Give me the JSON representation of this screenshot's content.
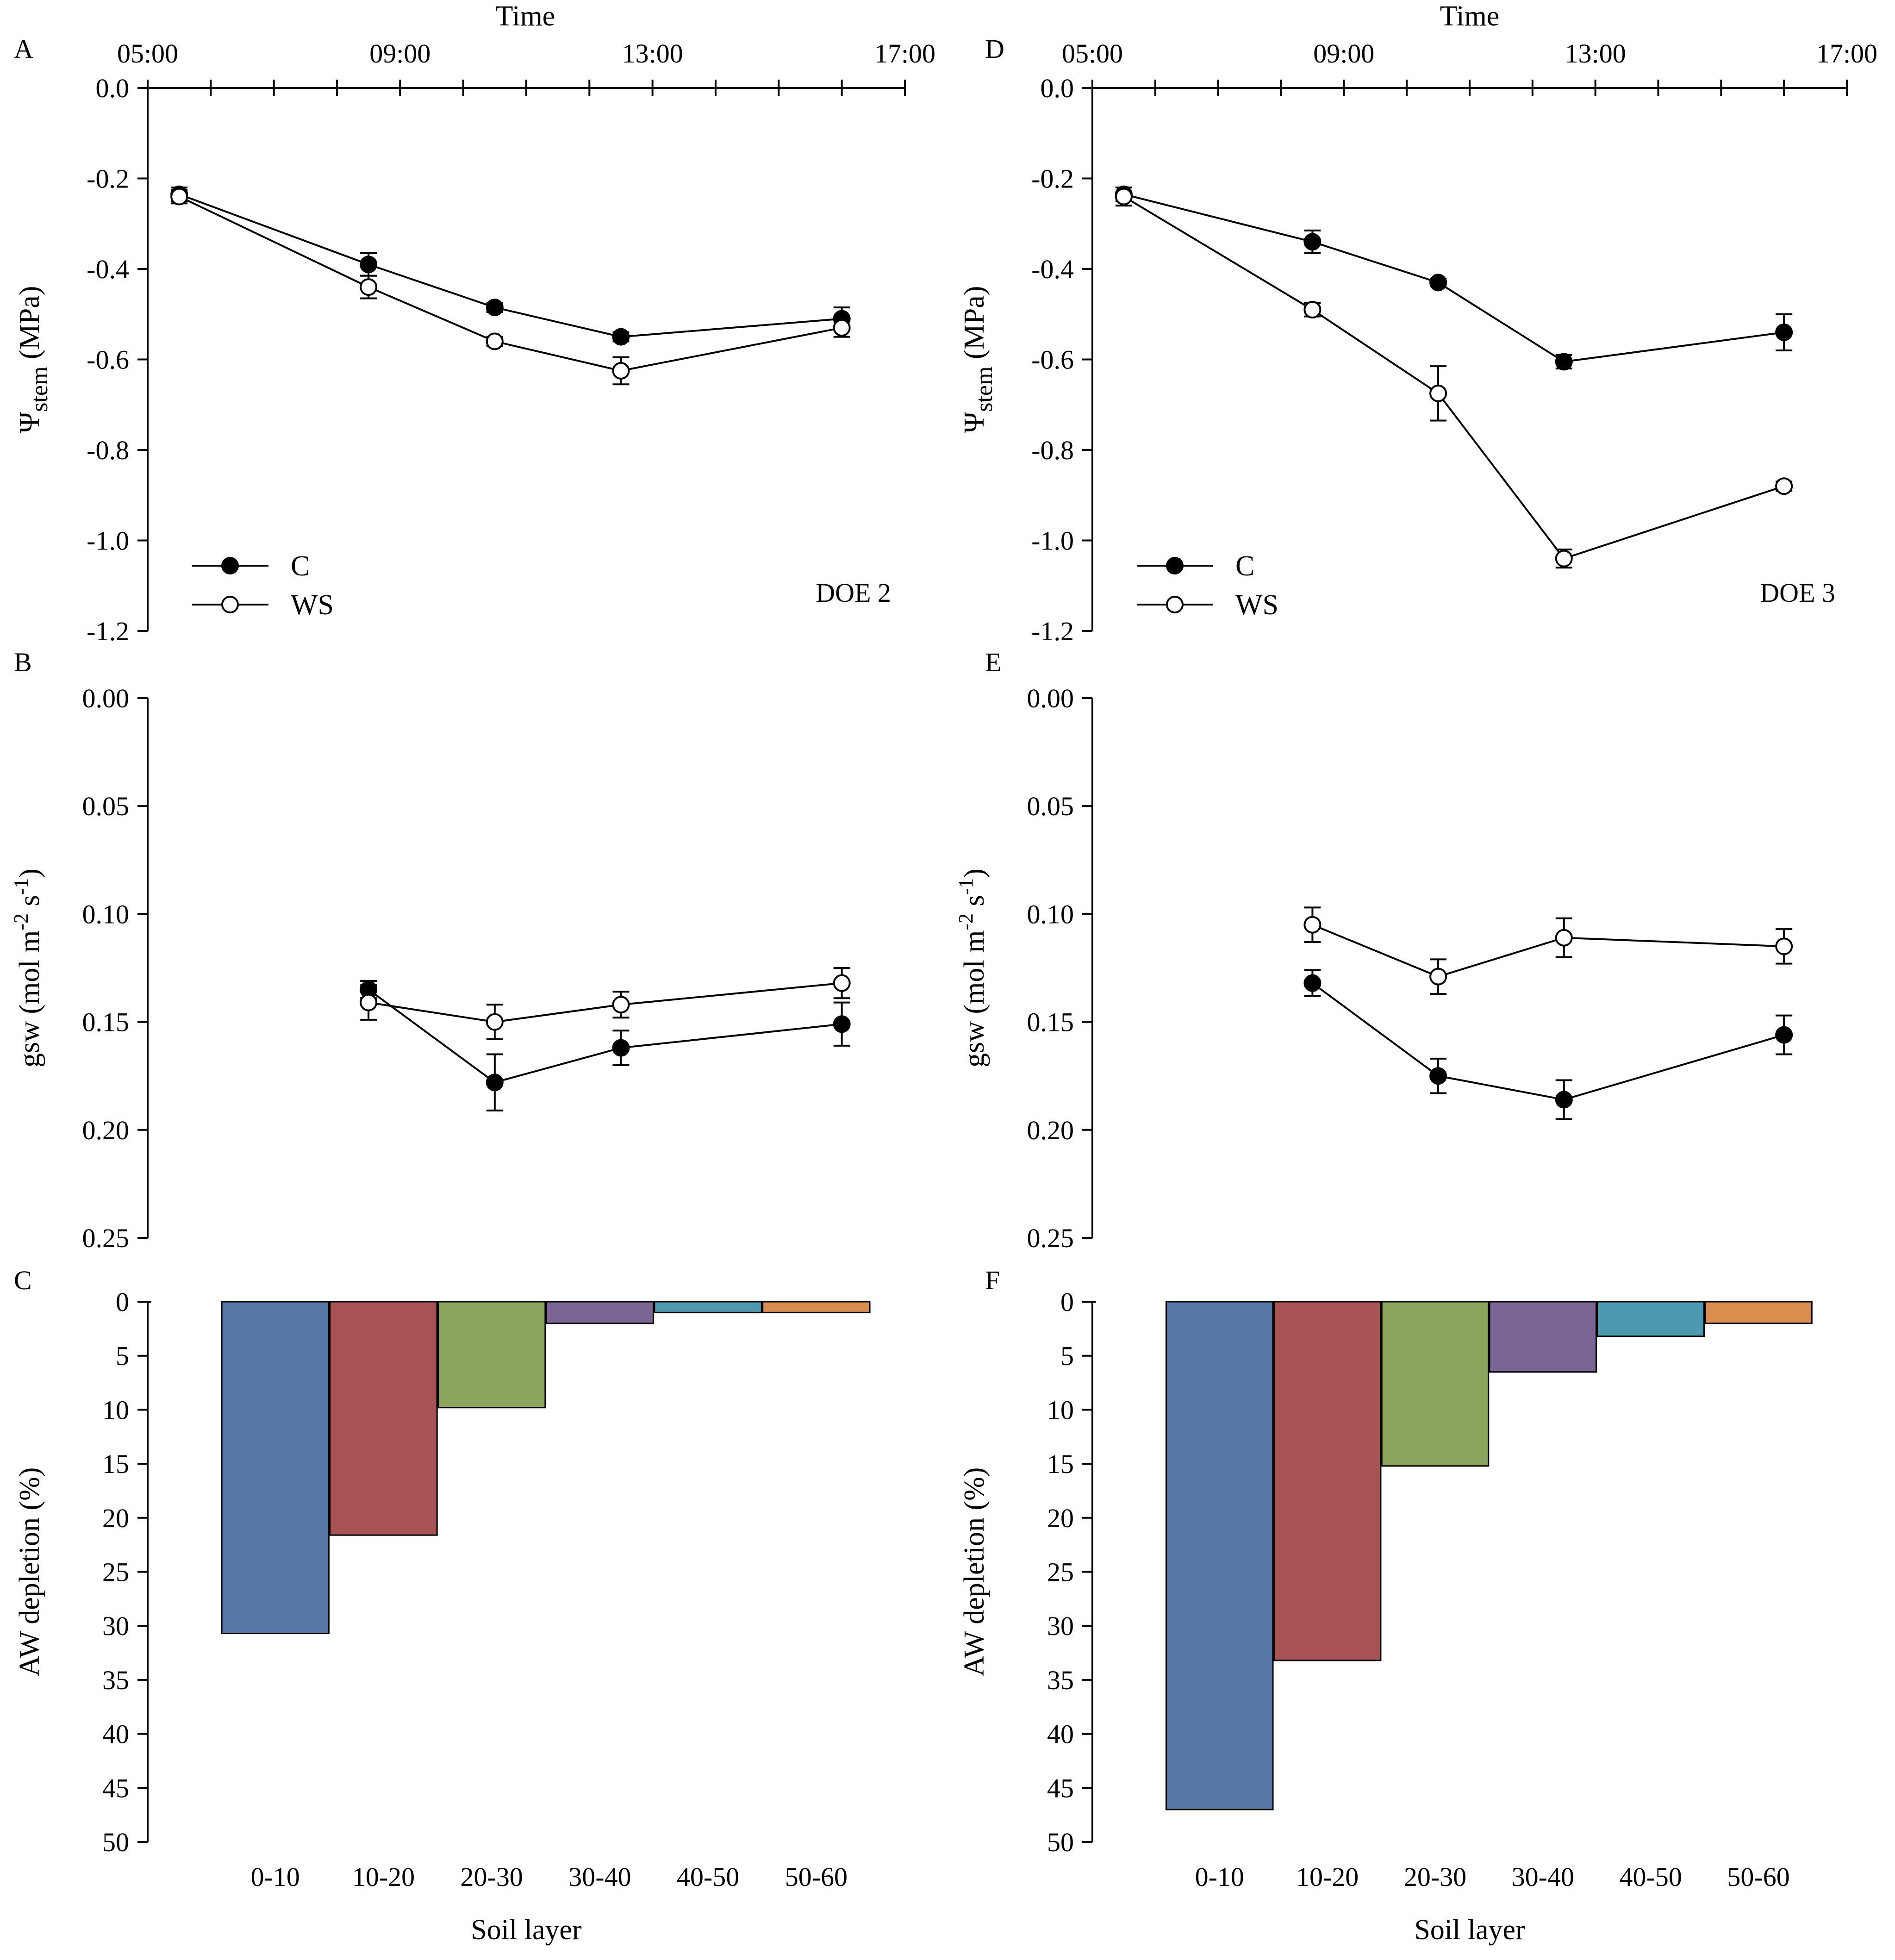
{
  "chart_data": [
    {
      "id": "A",
      "panel_label": "A",
      "type": "line",
      "title": "",
      "xlabel": "Time",
      "ylabel": "Ψstem (MPa)",
      "ylabel_main": "Ψ",
      "ylabel_sub": "stem",
      "ylabel_unit": " (MPa)",
      "annotation": "DOE 2",
      "x_domain": [
        5.5,
        17.5
      ],
      "x_ticks": [
        {
          "value": 5.5,
          "label": "05:00"
        },
        {
          "value": 9.5,
          "label": "09:00"
        },
        {
          "value": 13.5,
          "label": "13:00"
        },
        {
          "value": 17.5,
          "label": "17:00"
        }
      ],
      "ylim": [
        0,
        -1.2
      ],
      "y_ticks": [
        {
          "value": 0,
          "label": "0.0"
        },
        {
          "value": -0.2,
          "label": "-0.2"
        },
        {
          "value": -0.4,
          "label": "-0.4"
        },
        {
          "value": -0.6,
          "label": "-0.6"
        },
        {
          "value": -0.8,
          "label": "-0.8"
        },
        {
          "value": -1.0,
          "label": "-1.0"
        },
        {
          "value": -1.2,
          "label": "-1.2"
        }
      ],
      "legend": [
        {
          "label": "C",
          "style": "filled"
        },
        {
          "label": "WS",
          "style": "open"
        }
      ],
      "series": [
        {
          "name": "C",
          "style": "filled",
          "x": [
            6.0,
            9.0,
            11.0,
            13.0,
            16.5
          ],
          "values": [
            -0.235,
            -0.39,
            -0.485,
            -0.55,
            -0.51
          ],
          "errors": [
            0.015,
            0.025,
            0.01,
            0.01,
            0.025
          ]
        },
        {
          "name": "WS",
          "style": "open",
          "x": [
            6.0,
            9.0,
            11.0,
            13.0,
            16.5
          ],
          "values": [
            -0.24,
            -0.44,
            -0.56,
            -0.625,
            -0.53
          ],
          "errors": [
            0.015,
            0.025,
            0.01,
            0.03,
            0.02
          ]
        }
      ]
    },
    {
      "id": "B",
      "panel_label": "B",
      "type": "line",
      "title": "",
      "xlabel": "",
      "ylabel": "gsw (mol m-2 s-1)",
      "ylabel_main": "gsw (mol m",
      "ylabel_sup1": "-2",
      "ylabel_mid": " s",
      "ylabel_sup2": "-1",
      "ylabel_end": ")",
      "x_domain": [
        5.5,
        17.5
      ],
      "ylim": [
        0,
        0.25
      ],
      "y_ticks": [
        {
          "value": 0,
          "label": "0.00"
        },
        {
          "value": 0.05,
          "label": "0.05"
        },
        {
          "value": 0.1,
          "label": "0.10"
        },
        {
          "value": 0.15,
          "label": "0.15"
        },
        {
          "value": 0.2,
          "label": "0.20"
        },
        {
          "value": 0.25,
          "label": "0.25"
        }
      ],
      "series": [
        {
          "name": "C",
          "style": "filled",
          "x": [
            9.0,
            11.0,
            13.0,
            16.5
          ],
          "values": [
            0.135,
            0.178,
            0.162,
            0.151
          ],
          "errors": [
            0.004,
            0.013,
            0.008,
            0.01
          ]
        },
        {
          "name": "WS",
          "style": "open",
          "x": [
            9.0,
            11.0,
            13.0,
            16.5
          ],
          "values": [
            0.141,
            0.15,
            0.142,
            0.132
          ],
          "errors": [
            0.008,
            0.008,
            0.006,
            0.007
          ]
        }
      ]
    },
    {
      "id": "C",
      "panel_label": "C",
      "type": "bar",
      "title": "",
      "xlabel": "Soil layer",
      "ylabel": "AW depletion (%)",
      "ylim": [
        0,
        50
      ],
      "y_ticks": [
        {
          "value": 0,
          "label": "0"
        },
        {
          "value": 5,
          "label": "5"
        },
        {
          "value": 10,
          "label": "10"
        },
        {
          "value": 15,
          "label": "15"
        },
        {
          "value": 20,
          "label": "20"
        },
        {
          "value": 25,
          "label": "25"
        },
        {
          "value": 30,
          "label": "30"
        },
        {
          "value": 35,
          "label": "35"
        },
        {
          "value": 40,
          "label": "40"
        },
        {
          "value": 45,
          "label": "45"
        },
        {
          "value": 50,
          "label": "50"
        }
      ],
      "categories": [
        "0-10",
        "10-20",
        "20-30",
        "30-40",
        "40-50",
        "50-60"
      ],
      "values": [
        30.7,
        21.6,
        9.8,
        2.0,
        1.0,
        1.0
      ],
      "colors": [
        "#5578a6",
        "#a85353",
        "#8ba55c",
        "#7a6594",
        "#4d9ab0",
        "#d98e4f"
      ]
    },
    {
      "id": "D",
      "panel_label": "D",
      "type": "line",
      "title": "",
      "xlabel": "Time",
      "ylabel": "Ψstem (MPa)",
      "ylabel_main": "Ψ",
      "ylabel_sub": "stem",
      "ylabel_unit": " (MPa)",
      "annotation": "DOE 3",
      "x_domain": [
        5.5,
        17.5
      ],
      "x_ticks": [
        {
          "value": 5.5,
          "label": "05:00"
        },
        {
          "value": 9.5,
          "label": "09:00"
        },
        {
          "value": 13.5,
          "label": "13:00"
        },
        {
          "value": 17.5,
          "label": "17:00"
        }
      ],
      "ylim": [
        0,
        -1.2
      ],
      "y_ticks": [
        {
          "value": 0,
          "label": "0.0"
        },
        {
          "value": -0.2,
          "label": "-0.2"
        },
        {
          "value": -0.4,
          "label": "-0.4"
        },
        {
          "value": -0.6,
          "label": "-0.6"
        },
        {
          "value": -0.8,
          "label": "-0.8"
        },
        {
          "value": -1.0,
          "label": "-1.0"
        },
        {
          "value": -1.2,
          "label": "-1.2"
        }
      ],
      "legend": [
        {
          "label": "C",
          "style": "filled"
        },
        {
          "label": "WS",
          "style": "open"
        }
      ],
      "series": [
        {
          "name": "C",
          "style": "filled",
          "x": [
            6.0,
            9.0,
            11.0,
            13.0,
            16.5
          ],
          "values": [
            -0.235,
            -0.34,
            -0.43,
            -0.605,
            -0.54
          ],
          "errors": [
            0.015,
            0.025,
            0.008,
            0.015,
            0.04
          ]
        },
        {
          "name": "WS",
          "style": "open",
          "x": [
            6.0,
            9.0,
            11.0,
            13.0,
            16.5
          ],
          "values": [
            -0.24,
            -0.49,
            -0.675,
            -1.04,
            -0.88
          ],
          "errors": [
            0.02,
            0.015,
            0.06,
            0.02,
            0.01
          ]
        }
      ]
    },
    {
      "id": "E",
      "panel_label": "E",
      "type": "line",
      "title": "",
      "xlabel": "",
      "ylabel": "gsw (mol m-2 s-1)",
      "ylabel_main": "gsw (mol m",
      "ylabel_sup1": "-2",
      "ylabel_mid": " s",
      "ylabel_sup2": "-1",
      "ylabel_end": ")",
      "x_domain": [
        5.5,
        17.5
      ],
      "ylim": [
        0,
        0.25
      ],
      "y_ticks": [
        {
          "value": 0,
          "label": "0.00"
        },
        {
          "value": 0.05,
          "label": "0.05"
        },
        {
          "value": 0.1,
          "label": "0.10"
        },
        {
          "value": 0.15,
          "label": "0.15"
        },
        {
          "value": 0.2,
          "label": "0.20"
        },
        {
          "value": 0.25,
          "label": "0.25"
        }
      ],
      "series": [
        {
          "name": "C",
          "style": "filled",
          "x": [
            9.0,
            11.0,
            13.0,
            16.5
          ],
          "values": [
            0.132,
            0.175,
            0.186,
            0.156
          ],
          "errors": [
            0.006,
            0.008,
            0.009,
            0.009
          ]
        },
        {
          "name": "WS",
          "style": "open",
          "x": [
            9.0,
            11.0,
            13.0,
            16.5
          ],
          "values": [
            0.105,
            0.129,
            0.111,
            0.115
          ],
          "errors": [
            0.008,
            0.008,
            0.009,
            0.008
          ]
        }
      ]
    },
    {
      "id": "F",
      "panel_label": "F",
      "type": "bar",
      "title": "",
      "xlabel": "Soil layer",
      "ylabel": "AW depletion (%)",
      "ylim": [
        0,
        50
      ],
      "y_ticks": [
        {
          "value": 0,
          "label": "0"
        },
        {
          "value": 5,
          "label": "5"
        },
        {
          "value": 10,
          "label": "10"
        },
        {
          "value": 15,
          "label": "15"
        },
        {
          "value": 20,
          "label": "20"
        },
        {
          "value": 25,
          "label": "25"
        },
        {
          "value": 30,
          "label": "30"
        },
        {
          "value": 35,
          "label": "35"
        },
        {
          "value": 40,
          "label": "40"
        },
        {
          "value": 45,
          "label": "45"
        },
        {
          "value": 50,
          "label": "50"
        }
      ],
      "categories": [
        "0-10",
        "10-20",
        "20-30",
        "30-40",
        "40-50",
        "50-60"
      ],
      "values": [
        47.0,
        33.2,
        15.2,
        6.5,
        3.2,
        2.0
      ],
      "colors": [
        "#5578a6",
        "#a85353",
        "#8ba55c",
        "#7a6594",
        "#4d9ab0",
        "#d98e4f"
      ]
    }
  ]
}
